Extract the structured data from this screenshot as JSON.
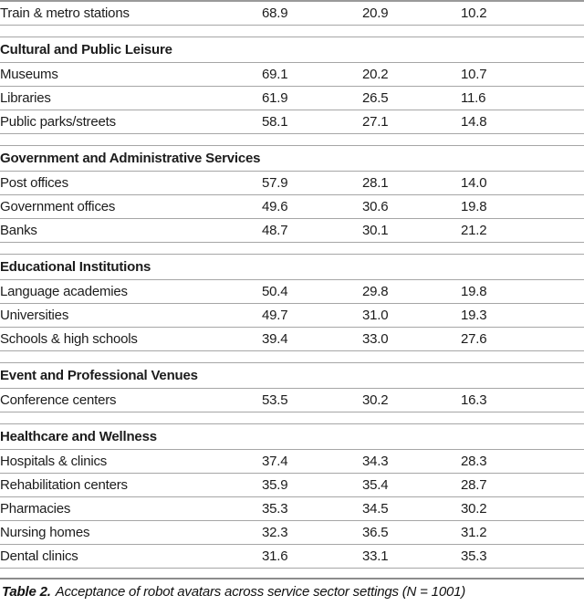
{
  "table": {
    "rows": [
      {
        "type": "data",
        "label": "Train & metro stations",
        "values": [
          "68.9",
          "20.9",
          "10.2"
        ]
      },
      {
        "type": "spacer"
      },
      {
        "type": "section",
        "label": "Cultural and Public Leisure"
      },
      {
        "type": "data",
        "label": "Museums",
        "values": [
          "69.1",
          "20.2",
          "10.7"
        ]
      },
      {
        "type": "data",
        "label": "Libraries",
        "values": [
          "61.9",
          "26.5",
          "11.6"
        ]
      },
      {
        "type": "data",
        "label": "Public parks/streets",
        "values": [
          "58.1",
          "27.1",
          "14.8"
        ]
      },
      {
        "type": "spacer"
      },
      {
        "type": "section",
        "label": "Government and Administrative Services",
        "wrap_justify": true
      },
      {
        "type": "data",
        "label": "Post offices",
        "values": [
          "57.9",
          "28.1",
          "14.0"
        ]
      },
      {
        "type": "data",
        "label": "Government offices",
        "values": [
          "49.6",
          "30.6",
          "19.8"
        ]
      },
      {
        "type": "data",
        "label": "Banks",
        "values": [
          "48.7",
          "30.1",
          "21.2"
        ]
      },
      {
        "type": "spacer"
      },
      {
        "type": "section",
        "label": "Educational Institutions"
      },
      {
        "type": "data",
        "label": "Language academies",
        "values": [
          "50.4",
          "29.8",
          "19.8"
        ]
      },
      {
        "type": "data",
        "label": "Universities",
        "values": [
          "49.7",
          "31.0",
          "19.3"
        ]
      },
      {
        "type": "data",
        "label": "Schools & high schools",
        "values": [
          "39.4",
          "33.0",
          "27.6"
        ]
      },
      {
        "type": "spacer"
      },
      {
        "type": "section",
        "label": "Event and Professional Venues"
      },
      {
        "type": "data",
        "label": "Conference centers",
        "values": [
          "53.5",
          "30.2",
          "16.3"
        ]
      },
      {
        "type": "spacer"
      },
      {
        "type": "section",
        "label": "Healthcare and Wellness"
      },
      {
        "type": "data",
        "label": "Hospitals & clinics",
        "values": [
          "37.4",
          "34.3",
          "28.3"
        ]
      },
      {
        "type": "data",
        "label": "Rehabilitation centers",
        "values": [
          "35.9",
          "35.4",
          "28.7"
        ]
      },
      {
        "type": "data",
        "label": "Pharmacies",
        "values": [
          "35.3",
          "34.5",
          "30.2"
        ]
      },
      {
        "type": "data",
        "label": "Nursing homes",
        "values": [
          "32.3",
          "36.5",
          "31.2"
        ]
      },
      {
        "type": "data",
        "label": "Dental clinics",
        "values": [
          "31.6",
          "33.1",
          "35.3"
        ]
      },
      {
        "type": "spacer",
        "end": true
      }
    ]
  },
  "caption": {
    "label": "Table 2.",
    "text": "Acceptance of robot avatars across service sector settings (N = 1001)"
  }
}
